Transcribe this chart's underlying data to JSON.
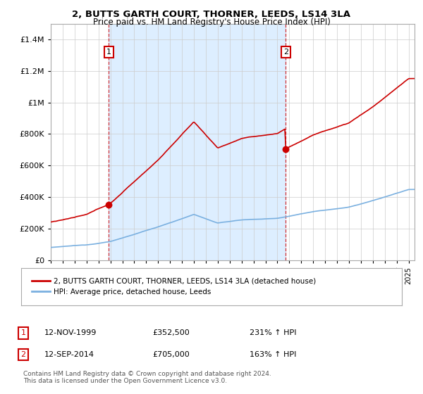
{
  "title": "2, BUTTS GARTH COURT, THORNER, LEEDS, LS14 3LA",
  "subtitle": "Price paid vs. HM Land Registry's House Price Index (HPI)",
  "legend_line1": "2, BUTTS GARTH COURT, THORNER, LEEDS, LS14 3LA (detached house)",
  "legend_line2": "HPI: Average price, detached house, Leeds",
  "transaction1_date": "12-NOV-1999",
  "transaction1_price": "£352,500",
  "transaction1_hpi": "231% ↑ HPI",
  "transaction2_date": "12-SEP-2014",
  "transaction2_price": "£705,000",
  "transaction2_hpi": "163% ↑ HPI",
  "footer": "Contains HM Land Registry data © Crown copyright and database right 2024.\nThis data is licensed under the Open Government Licence v3.0.",
  "hpi_color": "#7ab0e0",
  "property_color": "#cc0000",
  "dot_color": "#cc0000",
  "shade_color": "#ddeeff",
  "ylim_max": 1500000,
  "background_color": "#ffffff",
  "grid_color": "#cccccc",
  "t1_year": 1999,
  "t1_month": 11,
  "t1_price": 352500,
  "t2_year": 2014,
  "t2_month": 9,
  "t2_price": 705000
}
